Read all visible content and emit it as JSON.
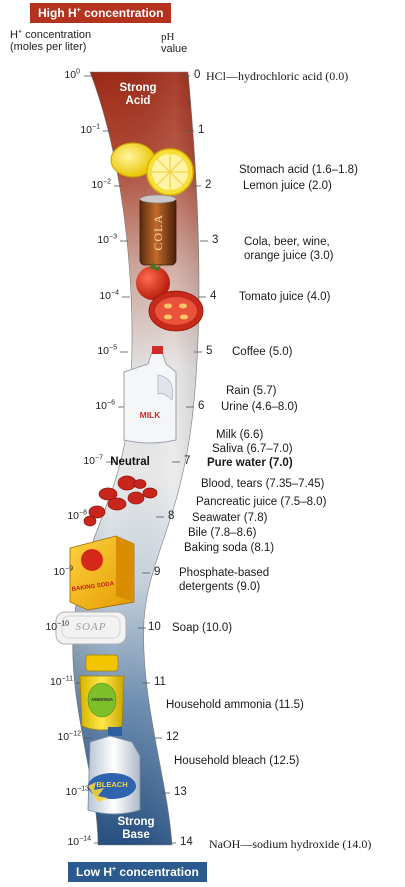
{
  "banners": {
    "top_prefix": "High H",
    "top_suffix": " concentration",
    "bottom_prefix": "Low H",
    "bottom_suffix": " concentration",
    "ion_charge": "+"
  },
  "headers": {
    "h_conc_line1_prefix": "H",
    "h_conc_line1_suffix": " concentration",
    "h_conc_line2": "(moles per liter)",
    "ph_line1": "pH",
    "ph_line2": "value"
  },
  "scale": [
    {
      "base": "10",
      "exp": "0",
      "ph": "0"
    },
    {
      "base": "10",
      "exp": "−1",
      "ph": "1"
    },
    {
      "base": "10",
      "exp": "−2",
      "ph": "2"
    },
    {
      "base": "10",
      "exp": "−3",
      "ph": "3"
    },
    {
      "base": "10",
      "exp": "−4",
      "ph": "4"
    },
    {
      "base": "10",
      "exp": "−5",
      "ph": "5"
    },
    {
      "base": "10",
      "exp": "−6",
      "ph": "6"
    },
    {
      "base": "10",
      "exp": "−7",
      "ph": "7"
    },
    {
      "base": "10",
      "exp": "−8",
      "ph": "8"
    },
    {
      "base": "10",
      "exp": "−9",
      "ph": "9"
    },
    {
      "base": "10",
      "exp": "−10",
      "ph": "10"
    },
    {
      "base": "10",
      "exp": "−11",
      "ph": "11"
    },
    {
      "base": "10",
      "exp": "−12",
      "ph": "12"
    },
    {
      "base": "10",
      "exp": "−13",
      "ph": "13"
    },
    {
      "base": "10",
      "exp": "−14",
      "ph": "14"
    }
  ],
  "band_labels": {
    "strong_acid_1": "Strong",
    "strong_acid_2": "Acid",
    "neutral": "Neutral",
    "strong_base_1": "Strong",
    "strong_base_2": "Base"
  },
  "substances": {
    "hcl": "HCl—hydrochloric acid (0.0)",
    "stomach_acid": "Stomach acid (1.6–1.8)",
    "lemon_juice": "Lemon juice (2.0)",
    "cola_1": "Cola, beer, wine,",
    "cola_2": "orange juice (3.0)",
    "tomato_juice": "Tomato juice (4.0)",
    "coffee": "Coffee (5.0)",
    "rain": "Rain (5.7)",
    "urine": "Urine (4.6–8.0)",
    "milk": "Milk (6.6)",
    "saliva": "Saliva (6.7–7.0)",
    "pure_water": "Pure water (7.0)",
    "blood": "Blood, tears (7.35–7.45)",
    "pancreatic": "Pancreatic juice (7.5–8.0)",
    "seawater": "Seawater (7.8)",
    "bile": "Bile (7.8–8.6)",
    "baking_soda": "Baking soda (8.1)",
    "phosphate_1": "Phosphate-based",
    "phosphate_2": "detergents (9.0)",
    "soap": "Soap (10.0)",
    "ammonia": "Household ammonia (11.5)",
    "bleach": "Household bleach (12.5)",
    "naoh": "NaOH—sodium hydroxide (14.0)"
  },
  "product_labels": {
    "cola": "COLA",
    "milk": "MILK",
    "baking_soda": "BAKING SODA",
    "soap": "SOAP",
    "ammonia": "AMMONIA",
    "bleach": "BLEACH"
  },
  "colors": {
    "acid": "#a8321e",
    "neutral": "#e4e4e6",
    "base": "#2c5a8c",
    "top_banner": "#b3331f",
    "bottom_banner": "#2b5b8e"
  }
}
